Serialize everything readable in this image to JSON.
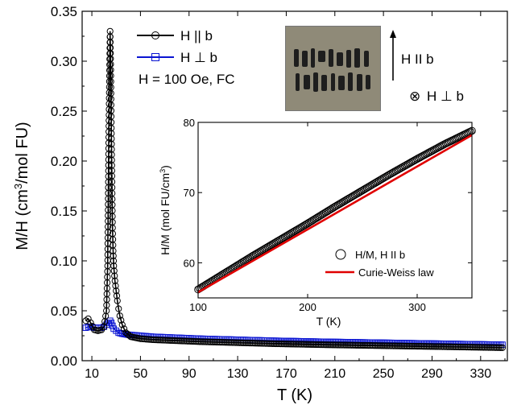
{
  "chart_data": [
    {
      "type": "scatter",
      "xlabel": "T (K)",
      "ylabel": "M/H (cm³/mol FU)",
      "ylabel_parts": {
        "pre": "M/H (cm",
        "sup": "3",
        "post": "/mol FU)"
      },
      "xlim": [
        2,
        352
      ],
      "ylim": [
        0,
        0.35
      ],
      "xticks": [
        10,
        50,
        90,
        130,
        170,
        210,
        250,
        290,
        330
      ],
      "yticks": [
        0.0,
        0.05,
        0.1,
        0.15,
        0.2,
        0.25,
        0.3,
        0.35
      ],
      "ytick_labels": [
        "0.00",
        "0.05",
        "0.10",
        "0.15",
        "0.20",
        "0.25",
        "0.30",
        "0.35"
      ],
      "annotation": "H = 100 Oe, FC",
      "legend_position": "top-left",
      "series": [
        {
          "name": "H || b",
          "color": "#000000",
          "marker": "open-circle",
          "x": [
            5,
            7,
            9,
            12,
            15,
            18,
            20,
            22,
            23,
            24,
            25,
            25.5,
            26,
            26.5,
            27,
            27.5,
            28,
            29,
            30,
            31,
            32,
            33,
            35,
            38,
            42,
            50,
            60,
            80,
            100,
            130,
            160,
            200,
            250,
            300,
            348
          ],
          "y": [
            0.04,
            0.042,
            0.038,
            0.031,
            0.03,
            0.031,
            0.034,
            0.05,
            0.095,
            0.235,
            0.33,
            0.297,
            0.233,
            0.185,
            0.133,
            0.11,
            0.095,
            0.08,
            0.07,
            0.06,
            0.052,
            0.045,
            0.036,
            0.028,
            0.024,
            0.022,
            0.021,
            0.02,
            0.019,
            0.018,
            0.017,
            0.016,
            0.015,
            0.014,
            0.013
          ]
        },
        {
          "name": "H ⊥ b",
          "color": "#0a14d2",
          "marker": "open-square",
          "x": [
            5,
            7,
            9,
            12,
            15,
            18,
            20,
            22,
            24,
            25,
            26,
            27,
            28,
            30,
            32,
            35,
            40,
            50,
            60,
            80,
            100,
            130,
            160,
            200,
            250,
            300,
            348
          ],
          "y": [
            0.033,
            0.034,
            0.034,
            0.033,
            0.033,
            0.033,
            0.034,
            0.036,
            0.038,
            0.04,
            0.038,
            0.035,
            0.032,
            0.03,
            0.028,
            0.027,
            0.026,
            0.025,
            0.024,
            0.023,
            0.022,
            0.021,
            0.02,
            0.019,
            0.018,
            0.017,
            0.016
          ]
        }
      ]
    },
    {
      "type": "scatter",
      "xlabel": "T (K)",
      "ylabel": "H/M (mol FU/cm³)",
      "ylabel_parts": {
        "pre": "H/M (mol FU/cm",
        "sup": "3",
        "post": ")"
      },
      "xlim": [
        100,
        350
      ],
      "ylim": [
        55,
        80
      ],
      "xticks": [
        100,
        200,
        300
      ],
      "yticks": [
        60,
        70,
        80
      ],
      "legend_position": "bottom-right",
      "series": [
        {
          "name": "H/M, H II b",
          "color": "#000000",
          "marker": "open-circle",
          "x": [
            100,
            125,
            150,
            175,
            200,
            225,
            250,
            275,
            300,
            325,
            350
          ],
          "y": [
            56.2,
            58.6,
            61.0,
            63.3,
            65.6,
            68.0,
            70.3,
            72.6,
            74.8,
            76.9,
            78.8
          ]
        },
        {
          "name": "Curie-Weiss law",
          "color": "#e00000",
          "line": true,
          "x": [
            100,
            350
          ],
          "y": [
            55.8,
            78.2
          ]
        }
      ]
    }
  ],
  "photo_labels": {
    "arrow_label": "H II b",
    "perp_symbol": "⊗",
    "perp_label": "H ⊥ b"
  },
  "colors": {
    "black_series": "#000000",
    "blue_series": "#0a14d2",
    "fit_line": "#e00000",
    "photo_bg": "#8f8a78",
    "crystal": "#1e1e1e"
  }
}
